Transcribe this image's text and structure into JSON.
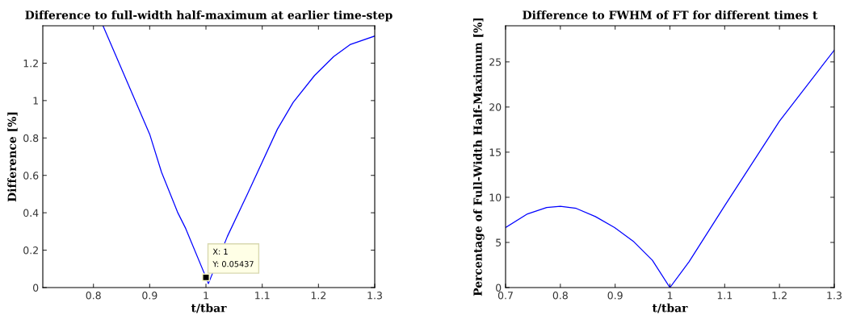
{
  "chart_data": [
    {
      "type": "line",
      "title": "Difference to full-width half-maximum at earlier time-step",
      "xlabel": "t/tbar",
      "ylabel": "Difference [%]",
      "x": [
        0.817,
        0.86,
        0.9,
        0.921,
        0.95,
        0.964,
        1.0,
        1.0043,
        1.038,
        1.074,
        1.127,
        1.155,
        1.193,
        1.227,
        1.256,
        1.3
      ],
      "series": [
        {
          "color": "#0000ff",
          "values": [
            1.4,
            1.1,
            0.82,
            0.617,
            0.4,
            0.316,
            0.05437,
            0.021,
            0.273,
            0.502,
            0.847,
            0.99,
            1.134,
            1.235,
            1.299,
            1.345
          ]
        }
      ],
      "xlim": [
        0.71,
        1.3
      ],
      "ylim": [
        0,
        1.4
      ],
      "xticks": [
        0.8,
        0.9,
        1,
        1.1,
        1.2,
        1.3
      ],
      "yticks": [
        0,
        0.2,
        0.4,
        0.6,
        0.8,
        1,
        1.2
      ],
      "annotations": [
        {
          "text": "X: 1\nY: 0.05437",
          "x": 1,
          "y": 0.05437
        }
      ],
      "grid": false,
      "legend": false
    },
    {
      "type": "line",
      "title": "Difference to FWHM of FT for different times t",
      "xlabel": "t/tbar",
      "ylabel": "Percentage of Full-Width Half-Maximum [%]",
      "x": [
        0.7,
        0.74,
        0.775,
        0.8,
        0.829,
        0.864,
        0.899,
        0.933,
        0.968,
        1.0,
        1.035,
        1.1,
        1.2,
        1.3
      ],
      "series": [
        {
          "color": "#0000ff",
          "values": [
            6.65,
            8.16,
            8.86,
            9.0,
            8.77,
            7.86,
            6.65,
            5.14,
            3.02,
            0,
            2.87,
            9.07,
            18.44,
            26.3
          ]
        }
      ],
      "xlim": [
        0.7,
        1.3
      ],
      "ylim": [
        0,
        29
      ],
      "xticks": [
        0.7,
        0.8,
        0.9,
        1,
        1.1,
        1.2,
        1.3
      ],
      "yticks": [
        0,
        5,
        10,
        15,
        20,
        25
      ],
      "grid": false,
      "legend": false
    }
  ]
}
